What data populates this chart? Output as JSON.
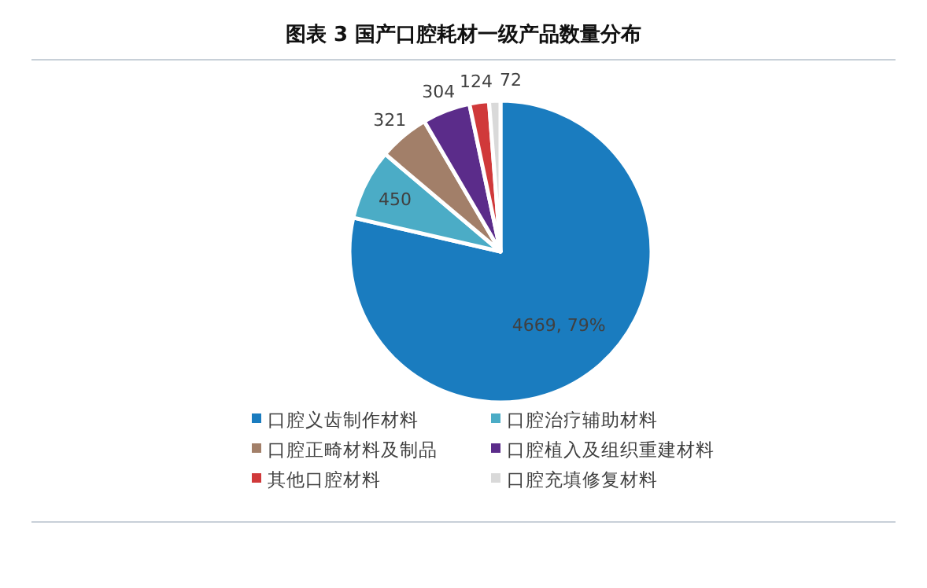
{
  "chart_data": {
    "type": "pie",
    "title": "图表 3 国产口腔耗材一级产品数量分布",
    "categories": [
      "口腔义齿制作材料",
      "口腔治疗辅助材料",
      "口腔正畸材料及制品",
      "口腔植入及组织重建材料",
      "其他口腔材料",
      "口腔充填修复材料"
    ],
    "values": [
      4669,
      450,
      321,
      304,
      124,
      72
    ],
    "colors": [
      "#1a7cbf",
      "#4bacc6",
      "#a27f69",
      "#5b2c8a",
      "#d0393a",
      "#d9d9d9"
    ],
    "value_labels": [
      "4669, 79%",
      "450",
      "321",
      "304",
      "124",
      "72"
    ],
    "legend": "bottom"
  }
}
